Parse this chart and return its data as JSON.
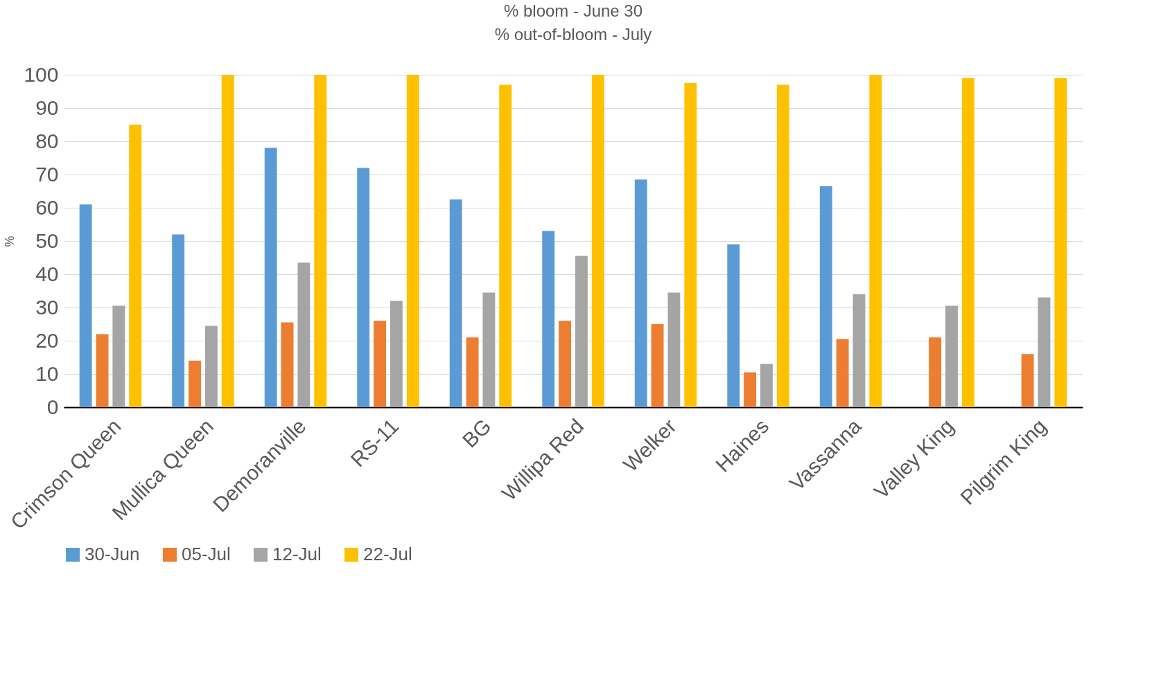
{
  "chart_data": {
    "type": "bar",
    "title": "% bloom - June 30",
    "subtitle": "% out-of-bloom - July",
    "ylabel": "%",
    "categories": [
      "Crimson Queen",
      "Mullica Queen",
      "Demoranville",
      "RS-11",
      "BG",
      "Willipa Red",
      "Welker",
      "Haines",
      "Vassanna",
      "Valley King",
      "Pilgrim King"
    ],
    "series": [
      {
        "name": "30-Jun",
        "color": "#5b9bd5",
        "values": [
          61,
          52,
          78,
          72,
          62.5,
          53,
          68.5,
          49,
          66.5,
          null,
          null
        ]
      },
      {
        "name": "05-Jul",
        "color": "#ed7d31",
        "values": [
          22,
          14,
          25.5,
          26,
          21,
          26,
          25,
          10.5,
          20.5,
          21,
          16
        ]
      },
      {
        "name": "12-Jul",
        "color": "#a5a5a5",
        "values": [
          30.5,
          24.5,
          43.5,
          32,
          34.5,
          45.5,
          34.5,
          13,
          34,
          30.5,
          33
        ]
      },
      {
        "name": "22-Jul",
        "color": "#ffc000",
        "values": [
          85,
          100,
          100,
          100,
          97,
          100,
          97.5,
          97,
          100,
          99,
          99
        ]
      }
    ],
    "ylim": [
      0,
      100
    ],
    "yticks": [
      0,
      10,
      20,
      30,
      40,
      50,
      60,
      70,
      80,
      90,
      100
    ],
    "grid": "y",
    "legend": "bottom"
  }
}
